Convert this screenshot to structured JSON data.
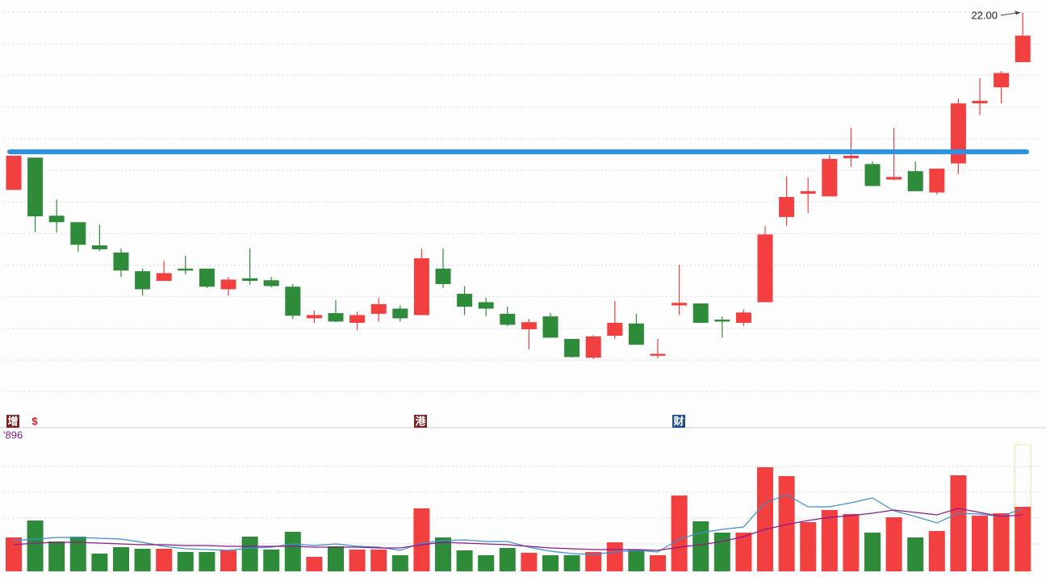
{
  "chart_data": {
    "type": "candlestick",
    "up_color": "#f23f3f",
    "down_color": "#2e8b3a",
    "open": [
      19.25,
      19.75,
      18.85,
      18.75,
      18.39,
      18.28,
      17.99,
      17.84,
      18.03,
      18.03,
      17.71,
      17.88,
      17.85,
      17.75,
      17.26,
      17.34,
      17.19,
      17.33,
      17.41,
      17.31,
      18.03,
      17.64,
      17.51,
      17.33,
      17.09,
      17.29,
      16.94,
      16.65,
      16.99,
      17.18,
      16.68,
      17.46,
      17.49,
      17.24,
      17.19,
      17.51,
      18.83,
      19.19,
      19.15,
      19.74,
      19.65,
      19.41,
      19.54,
      19.21,
      19.66,
      20.59,
      20.84,
      21.23
    ],
    "high": [
      19.78,
      19.75,
      19.1,
      18.75,
      18.71,
      18.34,
      18.03,
      18.15,
      18.23,
      18.03,
      17.9,
      18.34,
      17.9,
      17.79,
      17.38,
      17.54,
      17.36,
      17.58,
      17.46,
      18.34,
      18.34,
      17.76,
      17.58,
      17.44,
      17.25,
      17.34,
      16.94,
      17.0,
      17.53,
      17.33,
      16.94,
      18.09,
      17.49,
      17.29,
      17.4,
      18.69,
      19.46,
      19.44,
      19.79,
      20.21,
      19.69,
      20.21,
      19.69,
      19.58,
      20.66,
      20.98,
      21.09,
      22.0
    ],
    "low": [
      19.25,
      18.6,
      18.59,
      18.29,
      18.3,
      17.9,
      17.61,
      17.84,
      17.94,
      17.73,
      17.61,
      17.78,
      17.74,
      17.25,
      17.19,
      17.2,
      17.08,
      17.21,
      17.21,
      17.31,
      17.73,
      17.31,
      17.29,
      17.14,
      16.78,
      16.96,
      16.65,
      16.63,
      16.94,
      16.85,
      16.64,
      17.31,
      17.19,
      16.96,
      17.14,
      17.51,
      18.69,
      18.89,
      19.15,
      19.61,
      19.31,
      19.4,
      19.23,
      19.18,
      19.49,
      20.41,
      20.59,
      21.23
    ],
    "close": [
      19.78,
      18.84,
      18.75,
      18.4,
      18.33,
      18.0,
      17.71,
      17.96,
      18.0,
      17.75,
      17.86,
      17.84,
      17.76,
      17.3,
      17.31,
      17.21,
      17.31,
      17.48,
      17.26,
      18.19,
      17.79,
      17.44,
      17.41,
      17.16,
      17.2,
      16.96,
      16.66,
      16.98,
      17.19,
      16.85,
      16.71,
      17.5,
      17.19,
      17.21,
      17.35,
      18.56,
      19.14,
      19.23,
      19.73,
      19.78,
      19.31,
      19.45,
      19.23,
      19.58,
      20.59,
      20.63,
      21.06,
      21.64
    ],
    "ylim": [
      15.94,
      22.13
    ],
    "grid": true,
    "hline": {
      "value": 19.84,
      "color": "#2b93e6"
    },
    "annotation": "22.00",
    "markers": [
      "增",
      "$",
      "港",
      "财"
    ],
    "volume": [
      42,
      63,
      37,
      43,
      22,
      30,
      28,
      28,
      24,
      24,
      26,
      43,
      27,
      49,
      18,
      31,
      27,
      27,
      20,
      78,
      42,
      26,
      20,
      29,
      23,
      20,
      20,
      24,
      36,
      27,
      20,
      94,
      62,
      48,
      48,
      129,
      118,
      61,
      76,
      71,
      48,
      67,
      42,
      50,
      119,
      69,
      72,
      80
    ],
    "vlim": [
      0,
      160
    ],
    "volume_label": "'896",
    "volume_ma": [
      {
        "color": "#3a8fd6",
        "values": [
          38,
          40,
          42,
          42,
          41,
          40,
          36,
          31,
          28,
          27,
          26,
          29,
          30,
          34,
          32,
          34,
          31,
          30,
          26,
          35,
          38,
          39,
          37,
          37,
          30,
          25,
          22,
          21,
          24,
          26,
          24,
          40,
          48,
          52,
          55,
          85,
          95,
          80,
          80,
          85,
          91,
          75,
          68,
          60,
          72,
          71,
          68,
          78
        ]
      },
      {
        "color": "#8b1a8b",
        "values": [
          33,
          35,
          36,
          36,
          35,
          34,
          33,
          33,
          32,
          32,
          31,
          31,
          31,
          31,
          30,
          30,
          30,
          29,
          29,
          33,
          36,
          35,
          34,
          33,
          31,
          29,
          28,
          27,
          27,
          27,
          26,
          30,
          33,
          37,
          43,
          52,
          58,
          63,
          67,
          69,
          72,
          76,
          73,
          70,
          78,
          73,
          68,
          70
        ]
      }
    ]
  }
}
